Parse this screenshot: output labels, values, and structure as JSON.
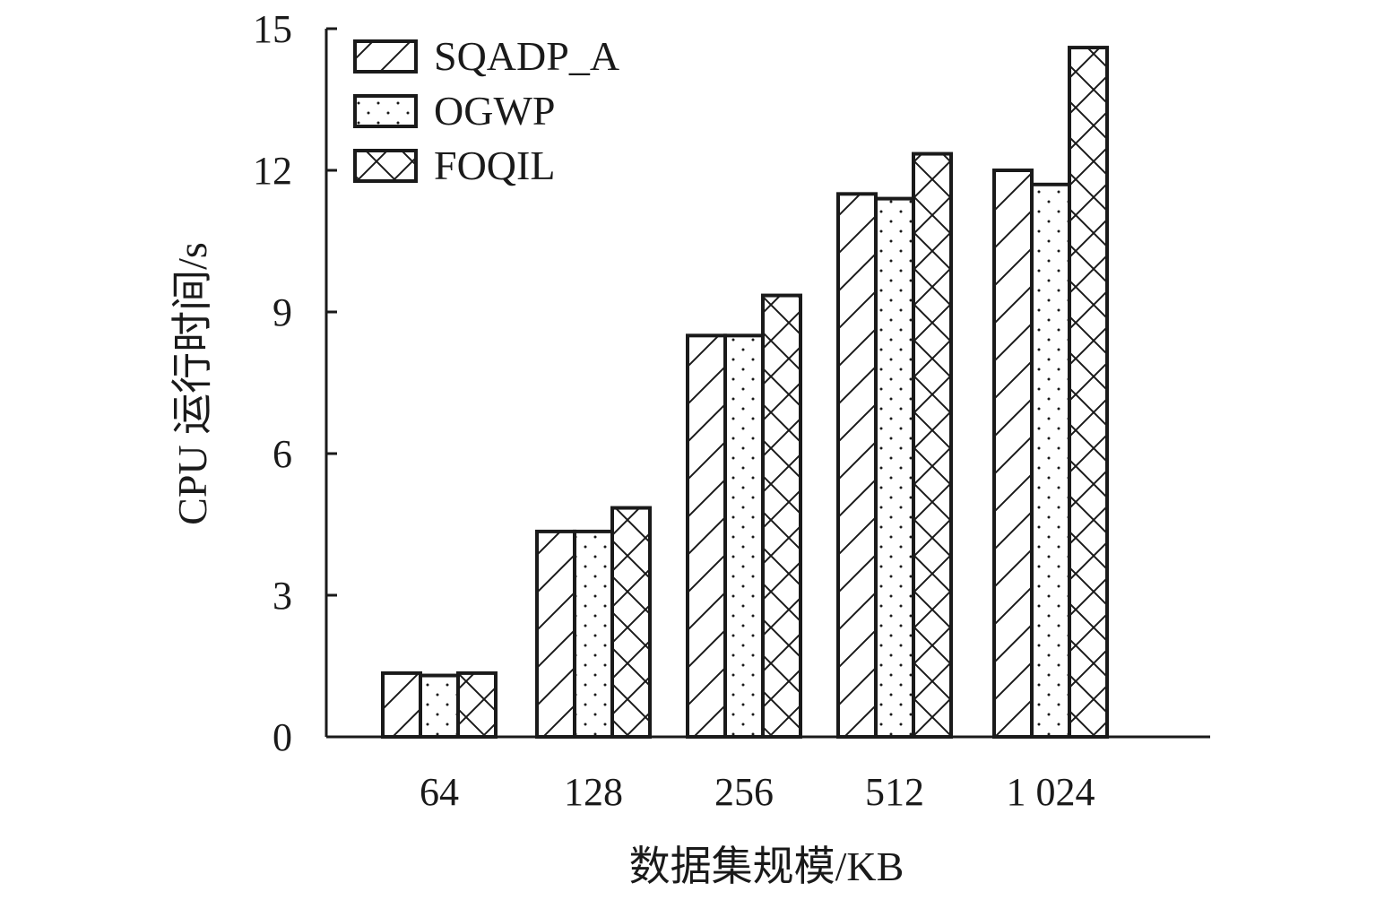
{
  "chart_data": {
    "type": "bar",
    "categories": [
      "64",
      "128",
      "256",
      "512",
      "1 024"
    ],
    "series": [
      {
        "name": "SQADP_A",
        "pattern": "diagonal-hatch",
        "values": [
          1.35,
          4.35,
          8.5,
          11.5,
          12.0
        ]
      },
      {
        "name": "OGWP",
        "pattern": "dots",
        "values": [
          1.3,
          4.35,
          8.5,
          11.4,
          11.7
        ]
      },
      {
        "name": "FOQIL",
        "pattern": "cross-hatch",
        "values": [
          1.35,
          4.85,
          9.35,
          12.35,
          14.6
        ]
      }
    ],
    "xlabel": "数据集规模/KB",
    "ylabel": "CPU 运行时间/s",
    "ylim": [
      0,
      15
    ],
    "yticks": [
      "0",
      "3",
      "6",
      "9",
      "12",
      "15"
    ],
    "grid": false,
    "legend": "top-left",
    "colors": {
      "stroke": "#1a1a1a",
      "fill": "#ffffff"
    }
  }
}
